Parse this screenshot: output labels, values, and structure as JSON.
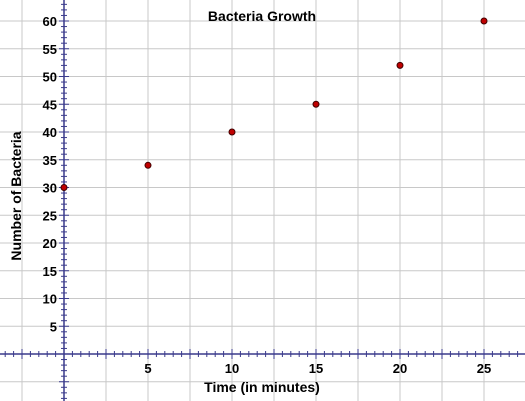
{
  "chart_data": {
    "type": "scatter",
    "title": "Bacteria Growth",
    "xlabel": "Time (in minutes)",
    "ylabel": "Number of Bacteria",
    "xlim": [
      -3,
      27
    ],
    "ylim": [
      -8,
      62
    ],
    "x_ticks": [
      5,
      10,
      15,
      20,
      25
    ],
    "y_ticks": [
      5,
      10,
      15,
      20,
      25,
      30,
      35,
      40,
      45,
      50,
      55,
      60
    ],
    "grid": true,
    "points": [
      {
        "x": 0,
        "y": 30
      },
      {
        "x": 5,
        "y": 34
      },
      {
        "x": 10,
        "y": 40
      },
      {
        "x": 15,
        "y": 45
      },
      {
        "x": 20,
        "y": 52
      },
      {
        "x": 25,
        "y": 60
      }
    ],
    "colors": {
      "point_fill": "#c00000",
      "point_stroke": "#400000",
      "axis": "#3a3a8c",
      "grid": "#c8c8c8"
    }
  }
}
